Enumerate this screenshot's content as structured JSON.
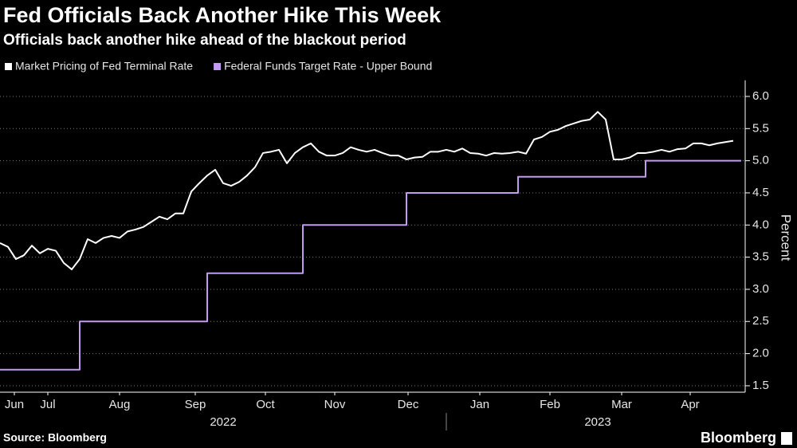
{
  "chart_data": {
    "type": "line",
    "title": "Fed Officials Back Another Hike This Week",
    "subtitle": "Officials back another hike ahead of the blackout period",
    "y_label": "Percent",
    "source": "Source: Bloomberg",
    "brand": "Bloomberg",
    "grid": true,
    "legend": "top-left",
    "xlim": [
      0,
      93.5
    ],
    "ylim": [
      1.4,
      6.25
    ],
    "yticks": [
      {
        "value": 1.5,
        "label": "1.5"
      },
      {
        "value": 2,
        "label": "2.0"
      },
      {
        "value": 2.5,
        "label": "2.5"
      },
      {
        "value": 3,
        "label": "3.0"
      },
      {
        "value": 3.5,
        "label": "3.5"
      },
      {
        "value": 4,
        "label": "4.0"
      },
      {
        "value": 4.5,
        "label": "4.5"
      },
      {
        "value": 5,
        "label": "5.0"
      },
      {
        "value": 5.5,
        "label": "5.5"
      },
      {
        "value": 6,
        "label": "6.0"
      }
    ],
    "xticks": [
      {
        "value": 1.8,
        "label": "Jun"
      },
      {
        "value": 6,
        "label": "Jul"
      },
      {
        "value": 15,
        "label": "Aug"
      },
      {
        "value": 24.5,
        "label": "Sep"
      },
      {
        "value": 33.3,
        "label": "Oct"
      },
      {
        "value": 42,
        "label": "Nov"
      },
      {
        "value": 51.2,
        "label": "Dec"
      },
      {
        "value": 60.2,
        "label": "Jan"
      },
      {
        "value": 69,
        "label": "Feb"
      },
      {
        "value": 78,
        "label": "Mar"
      },
      {
        "value": 86.6,
        "label": "Apr"
      }
    ],
    "year_ticks": [
      {
        "value": 28,
        "label": "2022"
      },
      {
        "value": 75,
        "label": "2023"
      }
    ],
    "series": [
      {
        "name": "Market Pricing of Fed Terminal Rate",
        "color": "#ffffff",
        "values": [
          3.72,
          3.66,
          3.47,
          3.53,
          3.68,
          3.56,
          3.63,
          3.6,
          3.41,
          3.31,
          3.47,
          3.78,
          3.72,
          3.8,
          3.83,
          3.8,
          3.9,
          3.93,
          3.97,
          4.05,
          4.13,
          4.09,
          4.18,
          4.18,
          4.52,
          4.65,
          4.77,
          4.86,
          4.65,
          4.61,
          4.67,
          4.77,
          4.9,
          5.12,
          5.14,
          5.17,
          4.96,
          5.12,
          5.21,
          5.27,
          5.14,
          5.08,
          5.08,
          5.12,
          5.21,
          5.17,
          5.14,
          5.17,
          5.12,
          5.08,
          5.08,
          5.02,
          5.05,
          5.06,
          5.14,
          5.14,
          5.17,
          5.14,
          5.19,
          5.12,
          5.11,
          5.08,
          5.12,
          5.11,
          5.12,
          5.14,
          5.11,
          5.33,
          5.37,
          5.45,
          5.48,
          5.54,
          5.58,
          5.62,
          5.64,
          5.76,
          5.64,
          5.02,
          5.02,
          5.05,
          5.12,
          5.12,
          5.14,
          5.17,
          5.14,
          5.18,
          5.19,
          5.27,
          5.27,
          5.24,
          5.27,
          5.29,
          5.31
        ]
      },
      {
        "name": "Federal Funds Target Rate - Upper Bound",
        "color": "#c39bf0",
        "step": true,
        "values": [
          1.75,
          1.75,
          1.75,
          1.75,
          1.75,
          1.75,
          1.75,
          1.75,
          1.75,
          1.75,
          2.5,
          2.5,
          2.5,
          2.5,
          2.5,
          2.5,
          2.5,
          2.5,
          2.5,
          2.5,
          2.5,
          2.5,
          2.5,
          2.5,
          2.5,
          2.5,
          3.25,
          3.25,
          3.25,
          3.25,
          3.25,
          3.25,
          3.25,
          3.25,
          3.25,
          3.25,
          3.25,
          3.25,
          4,
          4,
          4,
          4,
          4,
          4,
          4,
          4,
          4,
          4,
          4,
          4,
          4,
          4.5,
          4.5,
          4.5,
          4.5,
          4.5,
          4.5,
          4.5,
          4.5,
          4.5,
          4.5,
          4.5,
          4.5,
          4.5,
          4.5,
          4.75,
          4.75,
          4.75,
          4.75,
          4.75,
          4.75,
          4.75,
          4.75,
          4.75,
          4.75,
          4.75,
          4.75,
          4.75,
          4.75,
          4.75,
          4.75,
          5,
          5,
          5,
          5,
          5,
          5,
          5,
          5,
          5,
          5,
          5,
          5,
          5
        ]
      }
    ]
  }
}
